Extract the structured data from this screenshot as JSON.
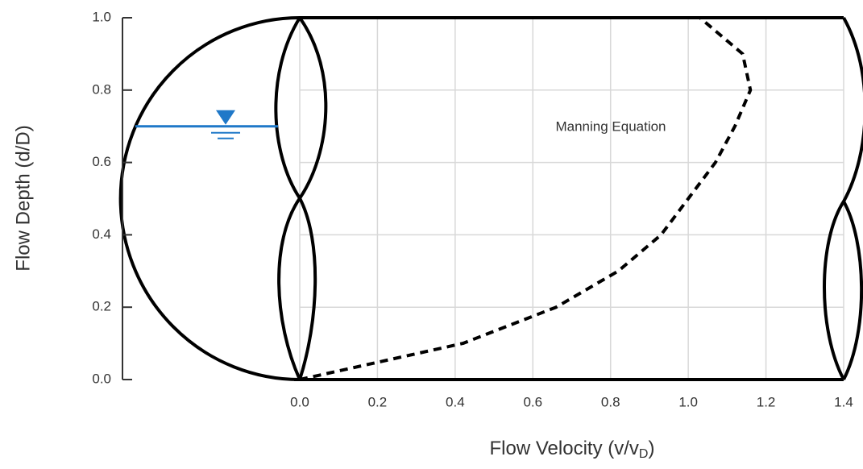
{
  "chart_data": {
    "type": "line",
    "annotation": "Manning Equation",
    "x_label": "Flow Velocity (v/v",
    "x_label_sub": "D",
    "x_label_end": ")",
    "y_label": "Flow Depth (d/D)",
    "series": [
      {
        "name": "Manning Equation",
        "color": "#000000",
        "style": "dashed",
        "x": [
          0,
          0.42,
          0.66,
          0.82,
          0.93,
          1.0,
          1.07,
          1.12,
          1.16,
          1.14,
          1.03
        ],
        "values": [
          0,
          0.1,
          0.2,
          0.3,
          0.4,
          0.5,
          0.6,
          0.7,
          0.8,
          0.9,
          1.0
        ]
      }
    ],
    "water_level": 0.7,
    "xlim": [
      0,
      1.4
    ],
    "ylim": [
      0,
      1.0
    ],
    "xticks": [
      {
        "value": 0,
        "label": "0.0"
      },
      {
        "value": 0.2,
        "label": "0.2"
      },
      {
        "value": 0.4,
        "label": "0.4"
      },
      {
        "value": 0.6,
        "label": "0.6"
      },
      {
        "value": 0.8,
        "label": "0.8"
      },
      {
        "value": 1.0,
        "label": "1.0"
      },
      {
        "value": 1.2,
        "label": "1.2"
      },
      {
        "value": 1.4,
        "label": "1.4"
      }
    ],
    "yticks": [
      {
        "value": 0,
        "label": "0.0"
      },
      {
        "value": 0.2,
        "label": "0.2"
      },
      {
        "value": 0.4,
        "label": "0.4"
      },
      {
        "value": 0.6,
        "label": "0.6"
      },
      {
        "value": 0.8,
        "label": "0.8"
      },
      {
        "value": 1.0,
        "label": "1.0"
      }
    ],
    "grid": true
  }
}
